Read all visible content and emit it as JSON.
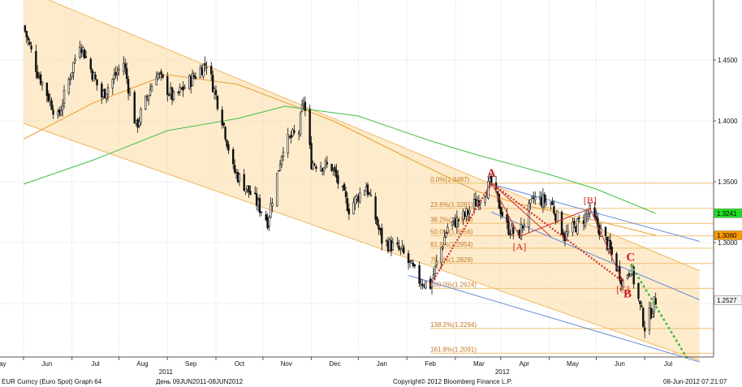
{
  "footer": {
    "left": "EUR Curncy (Euro Spot) Graph 64",
    "range": "День 09JUN2011-08JUN2012",
    "copyright": "Copyright© 2012 Bloomberg Finance L.P.",
    "timestamp": "08-Jun-2012 07:21:07"
  },
  "colors": {
    "background": "#ffffff",
    "grid": "#d8d8d8",
    "channel_fill": "#fdebcc",
    "channel_line": "#f0b860",
    "ma_orange": "#e8a030",
    "ma_green": "#40c040",
    "blue_line": "#6a8cd8",
    "candle": "#101010",
    "fib_text": "#c87820",
    "fib_line": "#f0c070",
    "wave_text": "#cc2020",
    "wave_path": "#d03030",
    "projection": "#44bb44"
  },
  "chart_data": {
    "type": "candlestick",
    "instrument": "EUR Curncy (Euro Spot)",
    "period": "09JUN2011-08JUN2012",
    "ylim": [
      1.2,
      1.5
    ],
    "y_ticks": [
      "1.4500",
      "1.4000",
      "1.3500",
      "1.3000"
    ],
    "x_ticks": [
      "May",
      "Jun",
      "Jul",
      "Aug",
      "Sep",
      "Oct",
      "Nov",
      "Dec",
      "Jan",
      "Feb",
      "Mar",
      "Apr",
      "May",
      "Jun",
      "Jul"
    ],
    "year_labels": [
      {
        "label": "2011",
        "near": "Aug"
      },
      {
        "label": "2012",
        "near": "Mar"
      }
    ],
    "price_path": [
      [
        "2011-05-01",
        1.478
      ],
      [
        "2011-05-10",
        1.44
      ],
      [
        "2011-05-23",
        1.402
      ],
      [
        "2011-06-06",
        1.465
      ],
      [
        "2011-06-20",
        1.42
      ],
      [
        "2011-07-04",
        1.448
      ],
      [
        "2011-07-12",
        1.395
      ],
      [
        "2011-07-25",
        1.44
      ],
      [
        "2011-08-05",
        1.418
      ],
      [
        "2011-08-26",
        1.448
      ],
      [
        "2011-09-05",
        1.402
      ],
      [
        "2011-09-12",
        1.36
      ],
      [
        "2011-09-26",
        1.335
      ],
      [
        "2011-10-04",
        1.318
      ],
      [
        "2011-10-14",
        1.38
      ],
      [
        "2011-10-24",
        1.392
      ],
      [
        "2011-10-27",
        1.418
      ],
      [
        "2011-11-01",
        1.366
      ],
      [
        "2011-11-14",
        1.362
      ],
      [
        "2011-11-25",
        1.328
      ],
      [
        "2011-12-06",
        1.347
      ],
      [
        "2011-12-16",
        1.302
      ],
      [
        "2011-12-29",
        1.292
      ],
      [
        "2012-01-09",
        1.269
      ],
      [
        "2012-01-16",
        1.265
      ],
      [
        "2012-01-27",
        1.313
      ],
      [
        "2012-02-07",
        1.322
      ],
      [
        "2012-02-24",
        1.349
      ],
      [
        "2012-03-05",
        1.313
      ],
      [
        "2012-03-12",
        1.305
      ],
      [
        "2012-03-22",
        1.336
      ],
      [
        "2012-04-02",
        1.333
      ],
      [
        "2012-04-11",
        1.305
      ],
      [
        "2012-04-27",
        1.325
      ],
      [
        "2012-05-07",
        1.302
      ],
      [
        "2012-05-18",
        1.268
      ],
      [
        "2012-05-23",
        1.28
      ],
      [
        "2012-05-29",
        1.247
      ],
      [
        "2012-06-01",
        1.231
      ],
      [
        "2012-06-08",
        1.253
      ]
    ],
    "moving_averages": [
      {
        "color": "orange",
        "points": [
          [
            "2011-05-01",
            1.385
          ],
          [
            "2011-06-15",
            1.415
          ],
          [
            "2011-08-01",
            1.438
          ],
          [
            "2011-09-15",
            1.43
          ],
          [
            "2011-11-15",
            1.4
          ],
          [
            "2012-01-01",
            1.37
          ],
          [
            "2012-02-15",
            1.342
          ],
          [
            "2012-03-15",
            1.331
          ],
          [
            "2012-05-01",
            1.318
          ],
          [
            "2012-06-08",
            1.306
          ]
        ]
      },
      {
        "color": "green",
        "points": [
          [
            "2011-05-01",
            1.348
          ],
          [
            "2011-06-15",
            1.368
          ],
          [
            "2011-08-01",
            1.392
          ],
          [
            "2011-09-15",
            1.402
          ],
          [
            "2011-10-15",
            1.412
          ],
          [
            "2011-12-01",
            1.404
          ],
          [
            "2012-01-15",
            1.384
          ],
          [
            "2012-02-15",
            1.372
          ],
          [
            "2012-04-01",
            1.356
          ],
          [
            "2012-05-01",
            1.344
          ],
          [
            "2012-06-08",
            1.324
          ]
        ]
      }
    ],
    "channel": {
      "upper": [
        [
          "2011-05-01",
          1.508
        ],
        [
          "2012-07-06",
          1.277
        ]
      ],
      "lower": [
        [
          "2011-05-01",
          1.398
        ],
        [
          "2012-07-06",
          1.203
        ]
      ]
    },
    "regression_lines": [
      {
        "from": [
          "2012-02-24",
          1.348
        ],
        "to": [
          "2012-07-06",
          1.301
        ]
      },
      {
        "from": [
          "2012-02-24",
          1.325
        ],
        "to": [
          "2012-07-06",
          1.253
        ]
      },
      {
        "from": [
          "2012-01-02",
          1.273
        ],
        "to": [
          "2012-07-06",
          1.202
        ]
      }
    ],
    "fibonacci": {
      "from_date": "2012-01-16",
      "levels": [
        {
          "label": "0.0%(1.3487)",
          "value": 1.3487
        },
        {
          "label": "23.6%(1.3281)",
          "value": 1.3281
        },
        {
          "label": "38.2%(1.3158)",
          "value": 1.3158
        },
        {
          "label": "50.0%(1.3056)",
          "value": 1.3056
        },
        {
          "label": "61.8%(1.2954)",
          "value": 1.2954
        },
        {
          "label": "76.4%(1.2828)",
          "value": 1.2828
        },
        {
          "label": "100.0%(1.2624)",
          "value": 1.2624
        },
        {
          "label": "138.2%(1.2294)",
          "value": 1.2294
        },
        {
          "label": "161.8%(1.2091)",
          "value": 1.2091
        }
      ]
    },
    "wave_labels": [
      {
        "label": "A",
        "date": "2012-02-24",
        "value": 1.354,
        "size": "large"
      },
      {
        "label": "[A]",
        "date": "2012-03-13",
        "value": 1.294,
        "size": "small"
      },
      {
        "label": "[B]",
        "date": "2012-04-27",
        "value": 1.332,
        "size": "small"
      },
      {
        "label": "C",
        "date": "2012-05-23",
        "value": 1.285,
        "size": "large"
      },
      {
        "label": "[C]",
        "date": "2012-05-18",
        "value": 1.259,
        "size": "small"
      },
      {
        "label": "B",
        "date": "2012-05-21",
        "value": 1.255,
        "size": "large"
      }
    ],
    "wave_paths": [
      {
        "style": "dotted",
        "points": [
          [
            "2012-01-16",
            1.265
          ],
          [
            "2012-02-24",
            1.349
          ],
          [
            "2012-05-18",
            1.268
          ]
        ]
      },
      {
        "style": "solid",
        "points": [
          [
            "2012-02-24",
            1.349
          ],
          [
            "2012-03-13",
            1.305
          ],
          [
            "2012-04-27",
            1.328
          ],
          [
            "2012-05-18",
            1.268
          ]
        ]
      },
      {
        "style": "solid",
        "points": [
          [
            "2012-02-24",
            1.349
          ],
          [
            "2012-04-02",
            1.305
          ]
        ]
      }
    ],
    "projection": {
      "style": "dotted",
      "from": [
        "2012-05-23",
        1.282
      ],
      "to": [
        "2012-06-29",
        1.203
      ]
    },
    "right_axis_badges": [
      {
        "label": "1.3241",
        "value": 1.3241,
        "color": "#22dd22"
      },
      {
        "label": "1.3060",
        "value": 1.306,
        "color": "#ff9900"
      },
      {
        "label": "1.2527",
        "value": 1.2527,
        "color": "#f4f4f4"
      }
    ],
    "grid": true,
    "legend": "none"
  }
}
